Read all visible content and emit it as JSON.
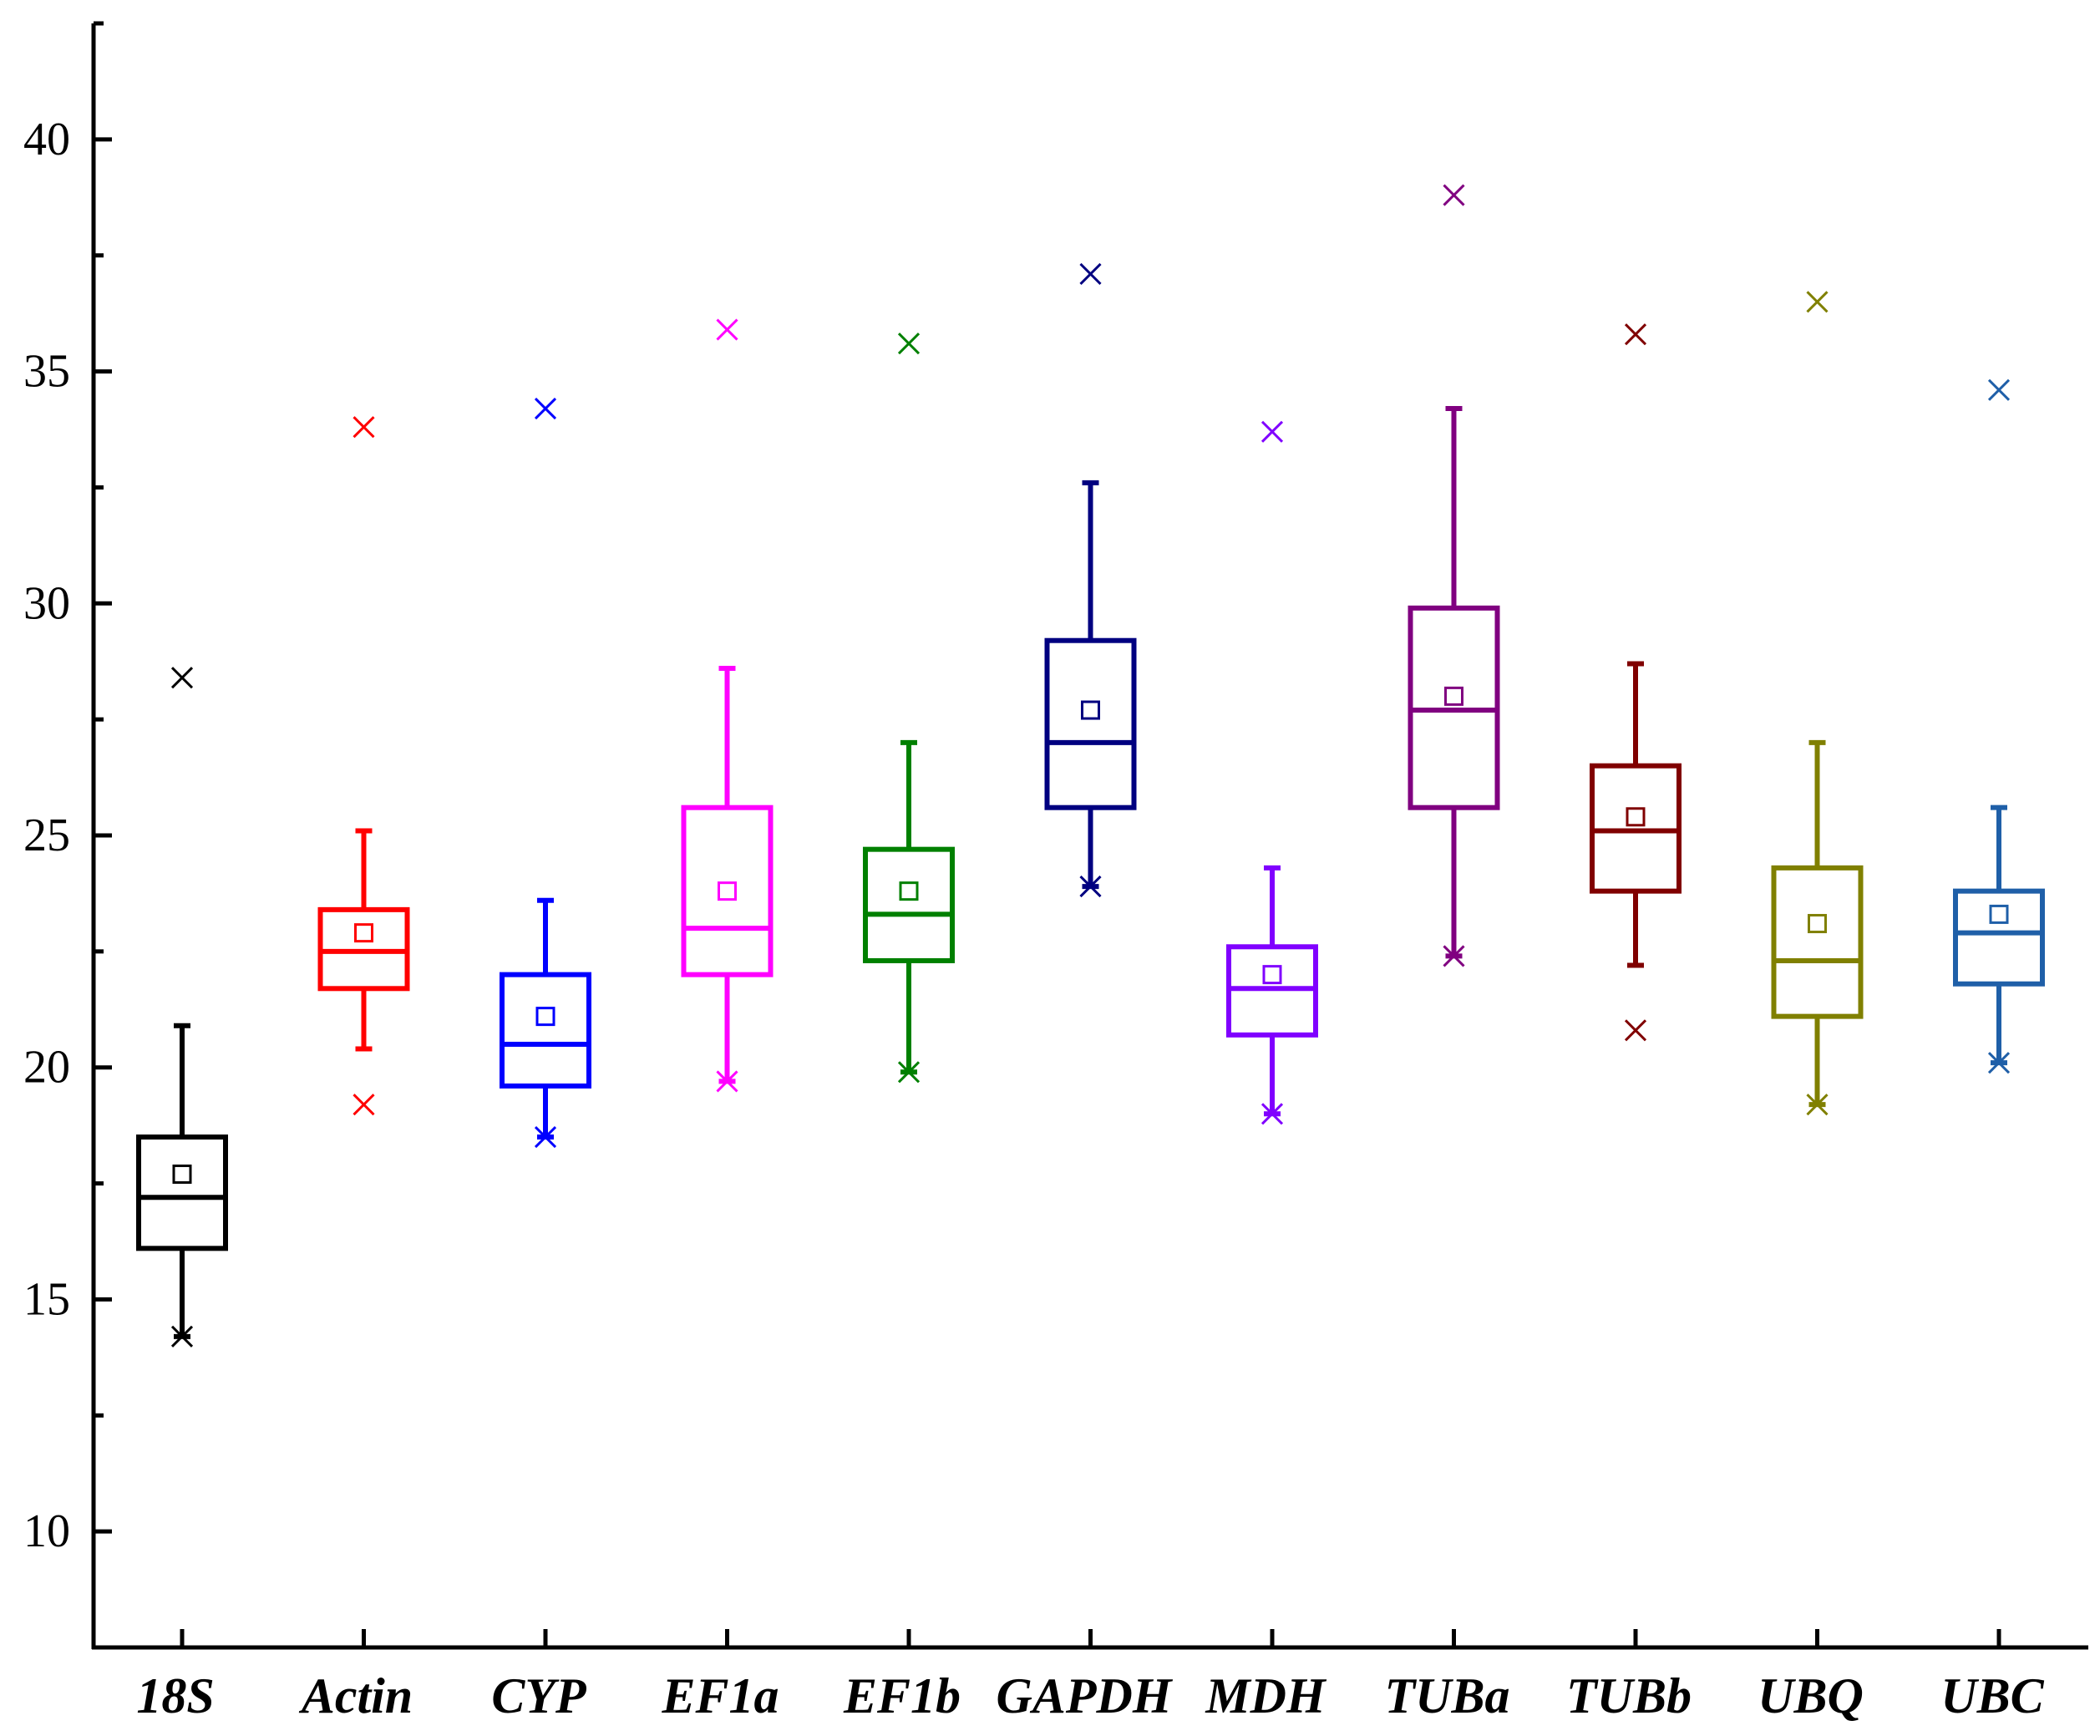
{
  "chart_data": {
    "type": "box",
    "title": "",
    "xlabel": "",
    "ylabel": "",
    "ylim": [
      7.5,
      42.5
    ],
    "yticks": [
      10,
      15,
      20,
      25,
      30,
      35,
      40
    ],
    "ytick_labels": [
      "10",
      "15",
      "20",
      "25",
      "30",
      "35",
      "40"
    ],
    "grid": false,
    "legend": "none",
    "categories": [
      "18S",
      "Actin",
      "CYP",
      "EF1a",
      "EF1b",
      "GAPDH",
      "MDH",
      "TUBa",
      "TUBb",
      "UBQ",
      "UBC"
    ],
    "series": [
      {
        "name": "18S",
        "color": "#000000",
        "whisker_low": 14.2,
        "q1": 16.1,
        "median": 17.2,
        "q3": 18.5,
        "whisker_high": 20.9,
        "mean": 17.7,
        "min": 14.2,
        "max": 28.4
      },
      {
        "name": "Actin",
        "color": "#ff0000",
        "whisker_low": 20.4,
        "q1": 21.7,
        "median": 22.5,
        "q3": 23.4,
        "whisker_high": 25.1,
        "mean": 22.9,
        "min": 19.2,
        "max": 33.8
      },
      {
        "name": "CYP",
        "color": "#0000ff",
        "whisker_low": 18.5,
        "q1": 19.6,
        "median": 20.5,
        "q3": 22.0,
        "whisker_high": 23.6,
        "mean": 21.1,
        "min": 18.5,
        "max": 34.2
      },
      {
        "name": "EF1a",
        "color": "#ff00ff",
        "whisker_low": 19.7,
        "q1": 22.0,
        "median": 23.0,
        "q3": 25.6,
        "whisker_high": 28.6,
        "mean": 23.8,
        "min": 19.7,
        "max": 35.9
      },
      {
        "name": "EF1b",
        "color": "#008000",
        "whisker_low": 19.9,
        "q1": 22.3,
        "median": 23.3,
        "q3": 24.7,
        "whisker_high": 27.0,
        "mean": 23.8,
        "min": 19.9,
        "max": 35.6
      },
      {
        "name": "GAPDH",
        "color": "#000080",
        "whisker_low": 23.9,
        "q1": 25.6,
        "median": 27.0,
        "q3": 29.2,
        "whisker_high": 32.6,
        "mean": 27.7,
        "min": 23.9,
        "max": 37.1
      },
      {
        "name": "MDH",
        "color": "#8000ff",
        "whisker_low": 19.0,
        "q1": 20.7,
        "median": 21.7,
        "q3": 22.6,
        "whisker_high": 24.3,
        "mean": 22.0,
        "min": 19.0,
        "max": 33.7
      },
      {
        "name": "TUBa",
        "color": "#800080",
        "whisker_low": 22.4,
        "q1": 25.6,
        "median": 27.7,
        "q3": 29.9,
        "whisker_high": 34.2,
        "mean": 28.0,
        "min": 22.4,
        "max": 38.8
      },
      {
        "name": "TUBb",
        "color": "#800000",
        "whisker_low": 22.2,
        "q1": 23.8,
        "median": 25.1,
        "q3": 26.5,
        "whisker_high": 28.7,
        "mean": 25.4,
        "min": 20.8,
        "max": 35.8
      },
      {
        "name": "UBQ",
        "color": "#808000",
        "whisker_low": 19.2,
        "q1": 21.1,
        "median": 22.3,
        "q3": 24.3,
        "whisker_high": 27.0,
        "mean": 23.1,
        "min": 19.2,
        "max": 36.5
      },
      {
        "name": "UBC",
        "color": "#1f5fa8",
        "whisker_low": 20.1,
        "q1": 21.8,
        "median": 22.9,
        "q3": 23.8,
        "whisker_high": 25.6,
        "mean": 23.3,
        "min": 20.1,
        "max": 34.6
      }
    ]
  }
}
